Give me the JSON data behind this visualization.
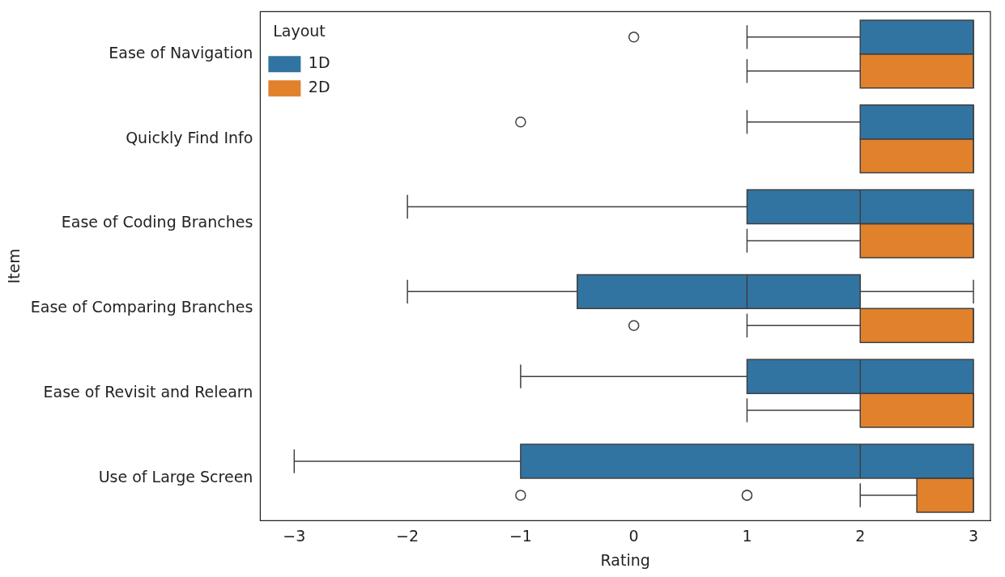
{
  "chart_data": {
    "type": "box",
    "orientation": "horizontal",
    "xlabel": "Rating",
    "ylabel": "Item",
    "legend_title": "Layout",
    "legend": "top left",
    "grid": false,
    "categories": [
      "Ease of Navigation",
      "Quickly Find Info",
      "Ease of Coding Branches",
      "Ease of Comparing Branches",
      "Ease of Revisit and Relearn",
      "Use of Large Screen"
    ],
    "xlim": [
      -3.3,
      3.15
    ],
    "xticks": [
      -3,
      -2,
      -1,
      0,
      1,
      2,
      3
    ],
    "series": [
      {
        "name": "1D",
        "color": "#3274a1",
        "boxes": [
          {
            "low": 1,
            "q1": 2,
            "median": 3,
            "q3": 3,
            "high": 3,
            "outliers": [
              0
            ]
          },
          {
            "low": 1,
            "q1": 2,
            "median": 3,
            "q3": 3,
            "high": 3,
            "outliers": [
              -1
            ]
          },
          {
            "low": -2,
            "q1": 1,
            "median": 2,
            "q3": 3,
            "high": 3
          },
          {
            "low": -2,
            "q1": -0.5,
            "median": 1,
            "q3": 2,
            "high": 3
          },
          {
            "low": -1,
            "q1": 1,
            "median": 2,
            "q3": 3,
            "high": 3
          },
          {
            "low": -3,
            "q1": -1,
            "median": 2,
            "q3": 3,
            "high": 3
          }
        ]
      },
      {
        "name": "2D",
        "color": "#e1812c",
        "boxes": [
          {
            "low": 1,
            "q1": 2,
            "median": 3,
            "q3": 3,
            "high": 3
          },
          {
            "low": 2,
            "q1": 2,
            "median": 3,
            "q3": 3,
            "high": 3
          },
          {
            "low": 1,
            "q1": 2,
            "median": 3,
            "q3": 3,
            "high": 3
          },
          {
            "low": 1,
            "q1": 2,
            "median": 3,
            "q3": 3,
            "high": 3,
            "outliers": [
              0
            ]
          },
          {
            "low": 1,
            "q1": 2,
            "median": 3,
            "q3": 3,
            "high": 3
          },
          {
            "low": 2,
            "q1": 2.5,
            "median": 3,
            "q3": 3,
            "high": 3,
            "outliers": [
              -1,
              1,
              1
            ]
          }
        ]
      }
    ]
  }
}
